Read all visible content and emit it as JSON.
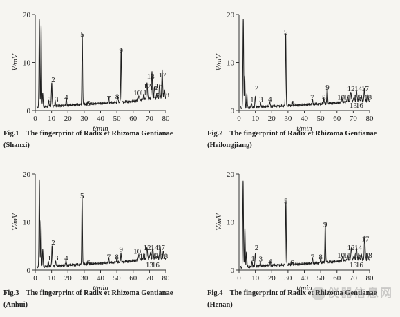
{
  "chart_data": [
    {
      "type": "line",
      "figure_label": "Fig.1",
      "caption": "The fingerprint of Radix et Rhizoma Gentianae (Shanxi)",
      "ylabel": "V/mV",
      "xlabel": "t/min",
      "xlim": [
        0,
        80
      ],
      "ylim": [
        0,
        20
      ],
      "x_ticks": [
        0,
        10,
        20,
        30,
        40,
        50,
        60,
        70,
        80
      ],
      "y_ticks": [
        0,
        10,
        20
      ],
      "baseline": [
        [
          0,
          0.6
        ],
        [
          10,
          0.9
        ],
        [
          20,
          1.1
        ],
        [
          30,
          1.3
        ],
        [
          40,
          1.5
        ],
        [
          50,
          1.7
        ],
        [
          60,
          1.9
        ],
        [
          65,
          2.2
        ],
        [
          70,
          2.5
        ],
        [
          75,
          2.4
        ],
        [
          80,
          2.6
        ]
      ],
      "peaks": [
        {
          "x": 2.5,
          "h": 18.3
        },
        {
          "x": 3.6,
          "h": 17.0
        },
        {
          "x": 4.6,
          "h": 2.8
        },
        {
          "x": 8.2,
          "h": 1.2,
          "label": "1"
        },
        {
          "x": 10.1,
          "h": 5.0,
          "label": "2"
        },
        {
          "x": 12.2,
          "h": 1.0,
          "label": "3"
        },
        {
          "x": 19.0,
          "h": 1.5,
          "label": "4"
        },
        {
          "x": 28.8,
          "h": 14.7,
          "label": "5"
        },
        {
          "x": 32.5,
          "h": 0.6,
          "label": "6"
        },
        {
          "x": 45.0,
          "h": 1.0,
          "label": "7"
        },
        {
          "x": 50.5,
          "h": 1.3,
          "label": "8"
        },
        {
          "x": 52.6,
          "h": 11.2,
          "label": "9"
        },
        {
          "x": 63.5,
          "h": 1.0,
          "label": "10"
        },
        {
          "x": 66.5,
          "h": 1.0,
          "label": "11"
        },
        {
          "x": 68.5,
          "h": 3.5,
          "label": "12"
        },
        {
          "x": 71.5,
          "h": 5.5,
          "label": "13"
        },
        {
          "x": 73.0,
          "h": 2.5,
          "label": "14"
        },
        {
          "x": 74.5,
          "h": 1.0,
          "label": "15"
        },
        {
          "x": 76.2,
          "h": 3.0,
          "label": "16"
        },
        {
          "x": 77.8,
          "h": 5.8,
          "label": "17"
        },
        {
          "x": 79.2,
          "h": 1.5,
          "label": "18"
        }
      ],
      "label_positions": [
        {
          "label": "1",
          "x": 9.0,
          "y": 1.9
        },
        {
          "label": "2",
          "x": 11.0,
          "y": 5.9
        },
        {
          "label": "3",
          "x": 13.0,
          "y": 1.8
        },
        {
          "label": "4",
          "x": 19.0,
          "y": 2.2
        },
        {
          "label": "5",
          "x": 28.8,
          "y": 15.4
        },
        {
          "label": "6",
          "x": 32.5,
          "y": 1.0
        },
        {
          "label": "7",
          "x": 45.0,
          "y": 2.0
        },
        {
          "label": "8",
          "x": 50.2,
          "y": 2.4
        },
        {
          "label": "9",
          "x": 52.6,
          "y": 12.0
        },
        {
          "label": "10",
          "x": 62.5,
          "y": 3.2
        },
        {
          "label": "11",
          "x": 66.3,
          "y": 3.2
        },
        {
          "label": "12",
          "x": 68.6,
          "y": 4.6
        },
        {
          "label": "13",
          "x": 70.8,
          "y": 6.6
        },
        {
          "label": "14",
          "x": 72.5,
          "y": 4.2
        },
        {
          "label": "15",
          "x": 73.8,
          "y": 2.6
        },
        {
          "label": "16",
          "x": 75.8,
          "y": 4.6
        },
        {
          "label": "17",
          "x": 78.0,
          "y": 6.9
        },
        {
          "label": "18",
          "x": 79.8,
          "y": 2.7
        }
      ]
    },
    {
      "type": "line",
      "figure_label": "Fig.2",
      "caption": "The fingerprint of Radix et Rhizoma Gentianae (Heilongjiang)",
      "ylabel": "V/mV",
      "xlabel": "t/min",
      "xlim": [
        0,
        80
      ],
      "ylim": [
        0,
        20
      ],
      "x_ticks": [
        0,
        10,
        20,
        30,
        40,
        50,
        60,
        70,
        80
      ],
      "y_ticks": [
        0,
        10,
        20
      ],
      "baseline": [
        [
          0,
          0.5
        ],
        [
          10,
          0.7
        ],
        [
          20,
          0.9
        ],
        [
          30,
          1.0
        ],
        [
          40,
          1.2
        ],
        [
          50,
          1.4
        ],
        [
          60,
          1.6
        ],
        [
          65,
          1.8
        ],
        [
          70,
          2.0
        ],
        [
          75,
          1.9
        ],
        [
          80,
          2.0
        ]
      ],
      "peaks": [
        {
          "x": 2.6,
          "h": 18.5
        },
        {
          "x": 3.5,
          "h": 6.5
        },
        {
          "x": 4.8,
          "h": 3.0
        },
        {
          "x": 7.6,
          "h": 0.9,
          "label": "1"
        },
        {
          "x": 10.0,
          "h": 2.4,
          "label": "2"
        },
        {
          "x": 13.2,
          "h": 0.8,
          "label": "3"
        },
        {
          "x": 18.8,
          "h": 1.0,
          "label": "4"
        },
        {
          "x": 28.6,
          "h": 15.0,
          "label": "5"
        },
        {
          "x": 32.8,
          "h": 0.6,
          "label": "6"
        },
        {
          "x": 45.0,
          "h": 0.9,
          "label": "7"
        },
        {
          "x": 52.0,
          "h": 1.0,
          "label": "8"
        },
        {
          "x": 54.0,
          "h": 3.5,
          "label": "9"
        },
        {
          "x": 63.0,
          "h": 0.8,
          "label": "10"
        },
        {
          "x": 66.5,
          "h": 1.0,
          "label": "11"
        },
        {
          "x": 68.5,
          "h": 2.0,
          "label": "12"
        },
        {
          "x": 70.5,
          "h": 1.0,
          "label": "13"
        },
        {
          "x": 72.0,
          "h": 2.2,
          "label": "14"
        },
        {
          "x": 73.5,
          "h": 1.2,
          "label": "15"
        },
        {
          "x": 75.0,
          "h": 1.0,
          "label": "16"
        },
        {
          "x": 76.8,
          "h": 2.4,
          "label": "17"
        },
        {
          "x": 78.8,
          "h": 1.2,
          "label": "18"
        }
      ],
      "label_positions": [
        {
          "label": "1",
          "x": 8.0,
          "y": 1.8
        },
        {
          "label": "2",
          "x": 10.8,
          "y": 4.2
        },
        {
          "label": "3",
          "x": 13.5,
          "y": 1.8
        },
        {
          "label": "4",
          "x": 19.0,
          "y": 1.9
        },
        {
          "label": "5",
          "x": 28.6,
          "y": 15.8
        },
        {
          "label": "6",
          "x": 33.0,
          "y": 1.0
        },
        {
          "label": "7",
          "x": 44.8,
          "y": 2.2
        },
        {
          "label": "8",
          "x": 52.0,
          "y": 2.2
        },
        {
          "label": "9",
          "x": 54.2,
          "y": 4.3
        },
        {
          "label": "10",
          "x": 62.5,
          "y": 2.2
        },
        {
          "label": "11",
          "x": 66.2,
          "y": 2.2
        },
        {
          "label": "12",
          "x": 68.6,
          "y": 4.0
        },
        {
          "label": "13",
          "x": 70.0,
          "y": 0.6
        },
        {
          "label": "14",
          "x": 73.0,
          "y": 4.0
        },
        {
          "label": "15",
          "x": 72.5,
          "y": 2.2
        },
        {
          "label": "16",
          "x": 73.8,
          "y": 0.6
        },
        {
          "label": "17",
          "x": 77.2,
          "y": 4.0
        },
        {
          "label": "18",
          "x": 79.0,
          "y": 2.2
        }
      ]
    },
    {
      "type": "line",
      "figure_label": "Fig.3",
      "caption": "The fingerprint of Radix et Rhizoma Gentianae (Anhui)",
      "ylabel": "V/mV",
      "xlabel": "t/min",
      "xlim": [
        0,
        80
      ],
      "ylim": [
        0,
        20
      ],
      "x_ticks": [
        0,
        10,
        20,
        30,
        40,
        50,
        60,
        70,
        80
      ],
      "y_ticks": [
        0,
        10,
        20
      ],
      "baseline": [
        [
          0,
          0.6
        ],
        [
          10,
          0.8
        ],
        [
          20,
          1.0
        ],
        [
          30,
          1.2
        ],
        [
          40,
          1.4
        ],
        [
          50,
          1.6
        ],
        [
          60,
          1.9
        ],
        [
          65,
          2.2
        ],
        [
          70,
          2.4
        ],
        [
          75,
          2.3
        ],
        [
          80,
          2.4
        ]
      ],
      "peaks": [
        {
          "x": 2.5,
          "h": 18.2
        },
        {
          "x": 3.5,
          "h": 9.5
        },
        {
          "x": 4.6,
          "h": 3.5
        },
        {
          "x": 8.0,
          "h": 1.0,
          "label": "1"
        },
        {
          "x": 10.3,
          "h": 4.3,
          "label": "2"
        },
        {
          "x": 12.5,
          "h": 1.0,
          "label": "3"
        },
        {
          "x": 18.8,
          "h": 1.2,
          "label": "4"
        },
        {
          "x": 28.7,
          "h": 14.2,
          "label": "5"
        },
        {
          "x": 32.5,
          "h": 0.6,
          "label": "6"
        },
        {
          "x": 45.0,
          "h": 1.0,
          "label": "7"
        },
        {
          "x": 50.0,
          "h": 1.0,
          "label": "8"
        },
        {
          "x": 52.5,
          "h": 1.8,
          "label": "9"
        },
        {
          "x": 63.5,
          "h": 1.2,
          "label": "10"
        },
        {
          "x": 66.5,
          "h": 1.0,
          "label": "11"
        },
        {
          "x": 68.5,
          "h": 2.5,
          "label": "12"
        },
        {
          "x": 70.5,
          "h": 1.2,
          "label": "13"
        },
        {
          "x": 72.0,
          "h": 2.5,
          "label": "14"
        },
        {
          "x": 73.5,
          "h": 1.0,
          "label": "15"
        },
        {
          "x": 75.0,
          "h": 1.0,
          "label": "16"
        },
        {
          "x": 76.5,
          "h": 2.8,
          "label": "17"
        },
        {
          "x": 78.5,
          "h": 1.5,
          "label": "18"
        }
      ],
      "label_positions": [
        {
          "label": "1",
          "x": 8.6,
          "y": 2.0
        },
        {
          "label": "2",
          "x": 11.0,
          "y": 5.2
        },
        {
          "label": "3",
          "x": 13.0,
          "y": 2.0
        },
        {
          "label": "4",
          "x": 19.0,
          "y": 2.0
        },
        {
          "label": "5",
          "x": 28.7,
          "y": 15.0
        },
        {
          "label": "6",
          "x": 32.5,
          "y": 1.0
        },
        {
          "label": "7",
          "x": 45.0,
          "y": 2.2
        },
        {
          "label": "8",
          "x": 50.0,
          "y": 2.2
        },
        {
          "label": "9",
          "x": 52.6,
          "y": 3.8
        },
        {
          "label": "10",
          "x": 62.5,
          "y": 3.4
        },
        {
          "label": "11",
          "x": 66.0,
          "y": 2.4
        },
        {
          "label": "12",
          "x": 68.6,
          "y": 4.2
        },
        {
          "label": "13",
          "x": 70.0,
          "y": 0.6
        },
        {
          "label": "14",
          "x": 73.0,
          "y": 4.2
        },
        {
          "label": "15",
          "x": 72.5,
          "y": 2.4
        },
        {
          "label": "16",
          "x": 73.8,
          "y": 0.6
        },
        {
          "label": "17",
          "x": 77.2,
          "y": 4.2
        },
        {
          "label": "18",
          "x": 79.0,
          "y": 2.4
        }
      ]
    },
    {
      "type": "line",
      "figure_label": "Fig.4",
      "caption": "The fingerprint of Radix et Rhizoma Gentianae (Henan)",
      "ylabel": "V/mV",
      "xlabel": "t/min",
      "xlim": [
        0,
        80
      ],
      "ylim": [
        0,
        20
      ],
      "x_ticks": [
        0,
        10,
        20,
        30,
        40,
        50,
        60,
        70,
        80
      ],
      "y_ticks": [
        0,
        10,
        20
      ],
      "baseline": [
        [
          0,
          0.5
        ],
        [
          10,
          0.8
        ],
        [
          20,
          1.0
        ],
        [
          30,
          1.1
        ],
        [
          40,
          1.3
        ],
        [
          50,
          1.5
        ],
        [
          60,
          1.8
        ],
        [
          65,
          2.0
        ],
        [
          70,
          2.2
        ],
        [
          75,
          2.1
        ],
        [
          80,
          2.2
        ]
      ],
      "peaks": [
        {
          "x": 2.5,
          "h": 18.0
        },
        {
          "x": 3.6,
          "h": 8.0
        },
        {
          "x": 4.6,
          "h": 3.0
        },
        {
          "x": 8.0,
          "h": 1.0,
          "label": "1"
        },
        {
          "x": 10.0,
          "h": 2.8,
          "label": "2"
        },
        {
          "x": 13.0,
          "h": 0.8,
          "label": "3"
        },
        {
          "x": 19.0,
          "h": 0.8,
          "label": "4"
        },
        {
          "x": 28.7,
          "h": 13.2,
          "label": "5"
        },
        {
          "x": 32.5,
          "h": 0.6,
          "label": "6"
        },
        {
          "x": 45.0,
          "h": 1.0,
          "label": "7"
        },
        {
          "x": 50.0,
          "h": 1.0,
          "label": "8"
        },
        {
          "x": 52.8,
          "h": 8.2,
          "label": "9"
        },
        {
          "x": 63.5,
          "h": 1.0,
          "label": "10"
        },
        {
          "x": 66.5,
          "h": 1.0,
          "label": "11"
        },
        {
          "x": 68.8,
          "h": 2.5,
          "label": "12"
        },
        {
          "x": 70.5,
          "h": 1.0,
          "label": "13"
        },
        {
          "x": 72.0,
          "h": 2.5,
          "label": "14"
        },
        {
          "x": 73.5,
          "h": 1.0,
          "label": "15"
        },
        {
          "x": 75.0,
          "h": 1.0,
          "label": "16"
        },
        {
          "x": 77.0,
          "h": 4.8,
          "label": "17"
        },
        {
          "x": 78.8,
          "h": 1.2,
          "label": "18"
        }
      ],
      "label_positions": [
        {
          "label": "1",
          "x": 8.5,
          "y": 1.9
        },
        {
          "label": "2",
          "x": 10.8,
          "y": 4.2
        },
        {
          "label": "3",
          "x": 13.3,
          "y": 1.8
        },
        {
          "label": "4",
          "x": 19.0,
          "y": 1.3
        },
        {
          "label": "5",
          "x": 28.7,
          "y": 13.9
        },
        {
          "label": "6",
          "x": 32.5,
          "y": 1.0
        },
        {
          "label": "7",
          "x": 45.0,
          "y": 2.2
        },
        {
          "label": "8",
          "x": 50.0,
          "y": 2.2
        },
        {
          "label": "9",
          "x": 52.8,
          "y": 9.0
        },
        {
          "label": "10",
          "x": 62.5,
          "y": 2.6
        },
        {
          "label": "11",
          "x": 66.2,
          "y": 2.6
        },
        {
          "label": "12",
          "x": 68.6,
          "y": 4.2
        },
        {
          "label": "13",
          "x": 70.0,
          "y": 0.6
        },
        {
          "label": "14",
          "x": 73.0,
          "y": 4.2
        },
        {
          "label": "15",
          "x": 72.5,
          "y": 2.6
        },
        {
          "label": "16",
          "x": 73.8,
          "y": 0.6
        },
        {
          "label": "17",
          "x": 77.4,
          "y": 6.0
        },
        {
          "label": "18",
          "x": 79.2,
          "y": 2.6
        }
      ]
    }
  ],
  "watermark": "仪器信息网",
  "colors": {
    "trace": "#1e1e1e",
    "axis": "#333333",
    "background": "#f6f5f1"
  }
}
